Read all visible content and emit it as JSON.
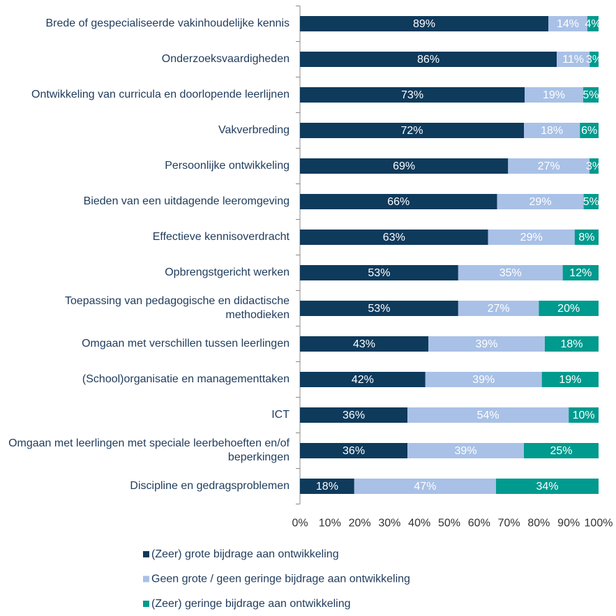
{
  "chart_data": {
    "type": "bar",
    "orientation": "horizontal",
    "stacked": "percent",
    "categories": [
      "Brede of gespecialiseerde vakinhoudelijke kennis",
      "Onderzoeksvaardigheden",
      "Ontwikkeling van curricula en doorlopende leerlijnen",
      "Vakverbreding",
      "Persoonlijke ontwikkeling",
      "Bieden van een uitdagende leeromgeving",
      "Effectieve kennisoverdracht",
      "Opbrengstgericht werken",
      "Toepassing van pedagogische en didactische methodieken",
      "Omgaan met verschillen tussen leerlingen",
      "(School)organisatie en managementtaken",
      "ICT",
      "Omgaan met leerlingen met speciale leerbehoeften en/of beperkingen",
      "Discipline en gedragsproblemen"
    ],
    "series": [
      {
        "name": "(Zeer) grote bijdrage aan ontwikkeling",
        "color": "#0e3a5c",
        "values": [
          89,
          86,
          73,
          72,
          69,
          66,
          63,
          53,
          53,
          43,
          42,
          36,
          36,
          18
        ],
        "value_labels": [
          "89%",
          "86%",
          "73%",
          "72%",
          "69%",
          "66%",
          "63%",
          "53%",
          "53%",
          "43%",
          "42%",
          "36%",
          "36%",
          "18%"
        ]
      },
      {
        "name": "Geen grote / geen geringe bijdrage aan ontwikkeling",
        "color": "#a9c1e6",
        "values": [
          14,
          11,
          19,
          18,
          27,
          29,
          29,
          35,
          27,
          39,
          39,
          54,
          39,
          47
        ],
        "value_labels": [
          "14%",
          "11%",
          "19%",
          "18%",
          "27%",
          "29%",
          "29%",
          "35%",
          "27%",
          "39%",
          "39%",
          "54%",
          "39%",
          "47%"
        ]
      },
      {
        "name": "(Zeer) geringe bijdrage aan ontwikkeling",
        "color": "#009a8e",
        "values": [
          4,
          3,
          5,
          6,
          3,
          5,
          8,
          12,
          20,
          18,
          19,
          10,
          25,
          34
        ],
        "value_labels": [
          "4%",
          "3%",
          "5%",
          "6%",
          "3%",
          "5%",
          "8%",
          "12%",
          "20%",
          "18%",
          "19%",
          "10%",
          "25%",
          "34%"
        ]
      }
    ],
    "xlim": [
      0,
      100
    ],
    "xticks": [
      {
        "value": 0,
        "label": "0%"
      },
      {
        "value": 10,
        "label": "10%"
      },
      {
        "value": 20,
        "label": "20%"
      },
      {
        "value": 30,
        "label": "30%"
      },
      {
        "value": 40,
        "label": "40%"
      },
      {
        "value": 50,
        "label": "50%"
      },
      {
        "value": 60,
        "label": "60%"
      },
      {
        "value": 70,
        "label": "70%"
      },
      {
        "value": 80,
        "label": "80%"
      },
      {
        "value": 90,
        "label": "90%"
      },
      {
        "value": 100,
        "label": "100%"
      }
    ],
    "legend": "bottom"
  }
}
